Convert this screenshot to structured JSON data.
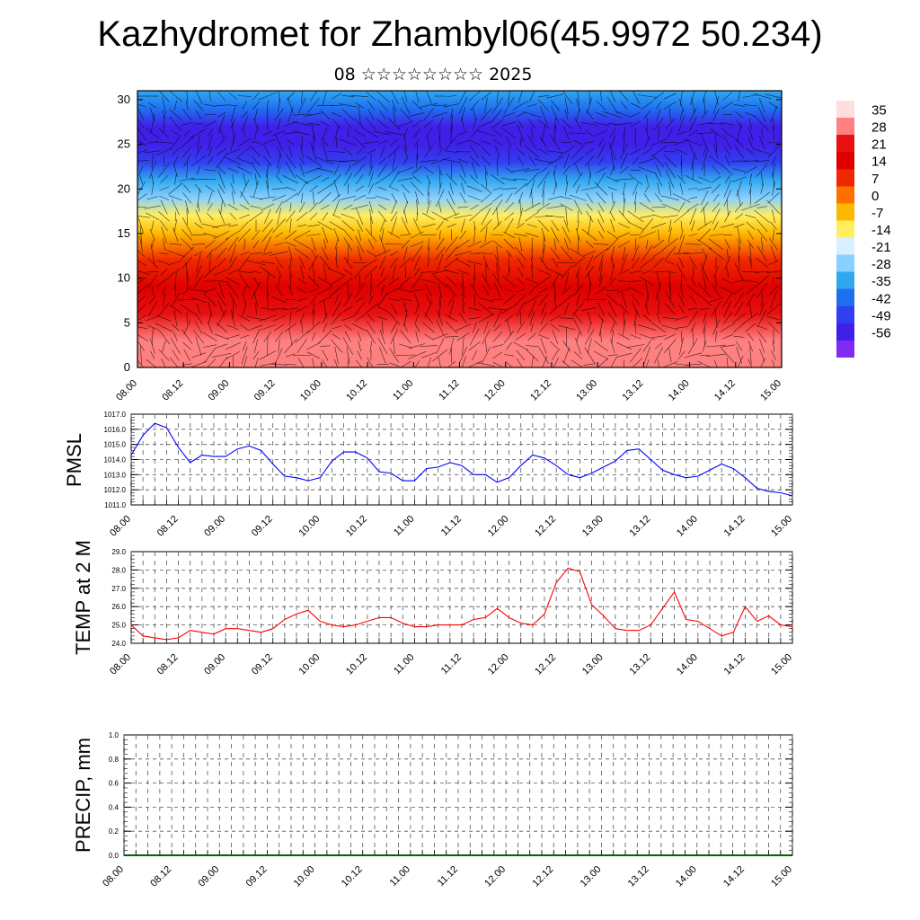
{
  "header": {
    "title": "Kazhydromet for Zhambyl06(45.9972 50.234)",
    "subtitle": "08 ☆☆☆☆☆☆☆☆ 2025"
  },
  "colors": {
    "pmsl_line": "#0000ff",
    "temp_line": "#ff0000",
    "precip_line": "#006400",
    "axis": "#000000",
    "grid": "#555555"
  },
  "chart_data": [
    {
      "type": "heatmap",
      "name": "upper-air-cross-section",
      "x_ticks": [
        "08.00",
        "08.12",
        "09.00",
        "09.12",
        "10.00",
        "10.12",
        "11.00",
        "11.12",
        "12.00",
        "12.12",
        "13.00",
        "13.12",
        "14.00",
        "14.12",
        "15.00"
      ],
      "y_ticks": [
        "0",
        "5",
        "10",
        "15",
        "20",
        "25",
        "30"
      ],
      "ylim": [
        0,
        31
      ],
      "colorbar": {
        "levels": [
          "35",
          "28",
          "21",
          "14",
          "7",
          "0",
          "-7",
          "-14",
          "-21",
          "-28",
          "-35",
          "-42",
          "-49",
          "-56"
        ],
        "palette": [
          "#ffdede",
          "#ff8080",
          "#e81010",
          "#e00000",
          "#f02800",
          "#ff7000",
          "#ffb800",
          "#ffee60",
          "#d8f0ff",
          "#88d0ff",
          "#30a8f0",
          "#1f70f0",
          "#3040f0",
          "#4020e8",
          "#7f2bf2"
        ]
      },
      "vertical_profile": [
        {
          "height": 0,
          "value": 33
        },
        {
          "height": 3,
          "value": 30
        },
        {
          "height": 6,
          "value": 24
        },
        {
          "height": 9,
          "value": 18
        },
        {
          "height": 12,
          "value": 8
        },
        {
          "height": 15,
          "value": -3
        },
        {
          "height": 17,
          "value": -12
        },
        {
          "height": 19,
          "value": -22
        },
        {
          "height": 21,
          "value": -32
        },
        {
          "height": 23,
          "value": -44
        },
        {
          "height": 25,
          "value": -55
        },
        {
          "height": 27,
          "value": -50
        },
        {
          "height": 29,
          "value": -40
        },
        {
          "height": 31,
          "value": -34
        }
      ],
      "wind_vectors": "shown",
      "grid": false
    },
    {
      "type": "line",
      "name": "pmsl",
      "ylabel": "PMSL",
      "ylim": [
        1011.0,
        1017.0
      ],
      "y_ticks": [
        "1011.0",
        "1012.0",
        "1013.0",
        "1014.0",
        "1015.0",
        "1016.0",
        "1017.0"
      ],
      "x_ticks": [
        "08.00",
        "08.12",
        "09.00",
        "09.12",
        "10.00",
        "10.12",
        "11.00",
        "11.12",
        "12.00",
        "12.12",
        "13.00",
        "13.12",
        "14.00",
        "14.12",
        "15.00"
      ],
      "x_start_hour": 0,
      "x_step_hours": 3,
      "values": [
        1014.3,
        1015.6,
        1016.4,
        1016.1,
        1014.8,
        1013.8,
        1014.3,
        1014.2,
        1014.2,
        1014.7,
        1014.9,
        1014.6,
        1013.7,
        1012.9,
        1012.8,
        1012.6,
        1012.8,
        1013.9,
        1014.5,
        1014.5,
        1014.1,
        1013.2,
        1013.1,
        1012.6,
        1012.6,
        1013.4,
        1013.5,
        1013.8,
        1013.6,
        1013.0,
        1013.0,
        1012.5,
        1012.8,
        1013.6,
        1014.3,
        1014.1,
        1013.6,
        1013.0,
        1012.8,
        1013.1,
        1013.5,
        1013.9,
        1014.6,
        1014.7,
        1014.0,
        1013.3,
        1013.0,
        1012.8,
        1012.9,
        1013.3,
        1013.7,
        1013.4,
        1012.8,
        1012.1,
        1011.9,
        1011.8,
        1011.6
      ],
      "grid": true
    },
    {
      "type": "line",
      "name": "temp-2m",
      "ylabel": "TEMP at 2 M",
      "ylim": [
        24.0,
        29.0
      ],
      "y_ticks": [
        "24.0",
        "25.0",
        "26.0",
        "27.0",
        "28.0",
        "29.0"
      ],
      "x_ticks": [
        "08.00",
        "08.12",
        "09.00",
        "09.12",
        "10.00",
        "10.12",
        "11.00",
        "11.12",
        "12.00",
        "12.12",
        "13.00",
        "13.12",
        "14.00",
        "14.12",
        "15.00"
      ],
      "x_start_hour": 0,
      "x_step_hours": 3,
      "values": [
        25.0,
        24.4,
        24.3,
        24.2,
        24.3,
        24.7,
        24.6,
        24.5,
        24.8,
        24.8,
        24.7,
        24.6,
        24.8,
        25.3,
        25.6,
        25.8,
        25.2,
        25.0,
        24.9,
        25.0,
        25.2,
        25.4,
        25.4,
        25.1,
        24.9,
        24.9,
        25.0,
        25.0,
        25.0,
        25.3,
        25.4,
        25.9,
        25.4,
        25.1,
        25.0,
        25.6,
        27.3,
        28.1,
        27.9,
        26.1,
        25.5,
        24.8,
        24.7,
        24.7,
        25.0,
        25.9,
        26.8,
        25.3,
        25.2,
        24.8,
        24.4,
        24.6,
        26.0,
        25.2,
        25.5,
        25.0,
        24.9
      ],
      "grid": true
    },
    {
      "type": "line",
      "name": "precip",
      "ylabel": "PRECIP, mm",
      "ylim": [
        0.0,
        1.0
      ],
      "y_ticks": [
        "0.0",
        "0.2",
        "0.4",
        "0.6",
        "0.8",
        "1.0"
      ],
      "x_ticks": [
        "08.00",
        "08.12",
        "09.00",
        "09.12",
        "10.00",
        "10.12",
        "11.00",
        "11.12",
        "12.00",
        "12.12",
        "13.00",
        "13.12",
        "14.00",
        "14.12",
        "15.00"
      ],
      "x_start_hour": 0,
      "x_step_hours": 3,
      "values": [
        0,
        0,
        0,
        0,
        0,
        0,
        0,
        0,
        0,
        0,
        0,
        0,
        0,
        0,
        0,
        0,
        0,
        0,
        0,
        0,
        0,
        0,
        0,
        0,
        0,
        0,
        0,
        0,
        0,
        0,
        0,
        0,
        0,
        0,
        0,
        0,
        0,
        0,
        0,
        0,
        0,
        0,
        0,
        0,
        0,
        0,
        0,
        0,
        0,
        0,
        0,
        0,
        0,
        0,
        0,
        0,
        0
      ],
      "grid": true
    }
  ]
}
